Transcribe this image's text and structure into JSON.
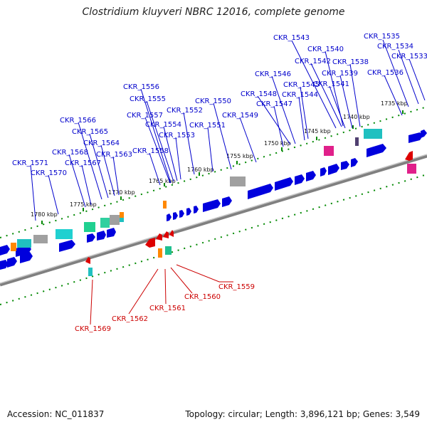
{
  "title": "Clostridium kluyveri NBRC 12016, complete genome",
  "footer": {
    "accession": "Accession: NC_011837",
    "summary": "Topology: circular; Length: 3,896,121 bp; Genes: 3,549"
  },
  "colors": {
    "forward_label": "#0000cc",
    "reverse_label": "#cc0000",
    "forward_gene": "#0000dd",
    "reverse_gene": "#dd0000",
    "tick": "#008800",
    "backbone": "#808080",
    "rna": "#20c0c0",
    "pseudo": "#a0a0a0",
    "special": "#e0208a",
    "orange": "#ff8800"
  },
  "kbp_ticks": [
    "1735 kbp",
    "1740 kbp",
    "1745 kbp",
    "1750 kbp",
    "1755 kbp",
    "1760 kbp",
    "1765 kbp",
    "1770 kbp",
    "1775 kbp",
    "1780 kbp"
  ],
  "forward_labels": [
    "CKR_1535",
    "CKR_1534",
    "CKR_1533",
    "CKR_1543",
    "CKR_1540",
    "CKR_1542",
    "CKR_1538",
    "CKR_1539",
    "CKR_1536",
    "CKR_1546",
    "CKR_1541",
    "CKR_1545",
    "CKR_1548",
    "CKR_1544",
    "CKR_1547",
    "CKR_1550",
    "CKR_1549",
    "CKR_1556",
    "CKR_1555",
    "CKR_1552",
    "CKR_1557",
    "CKR_1554",
    "CKR_1551",
    "CKR_1553",
    "CKR_1566",
    "CKR_1565",
    "CKR_1564",
    "CKR_1558",
    "CKR_1568",
    "CKR_1563",
    "CKR_1571",
    "CKR_1567",
    "CKR_1570"
  ],
  "reverse_labels": [
    "CKR_1559",
    "CKR_1560",
    "CKR_1561",
    "CKR_1562",
    "CKR_1569"
  ]
}
